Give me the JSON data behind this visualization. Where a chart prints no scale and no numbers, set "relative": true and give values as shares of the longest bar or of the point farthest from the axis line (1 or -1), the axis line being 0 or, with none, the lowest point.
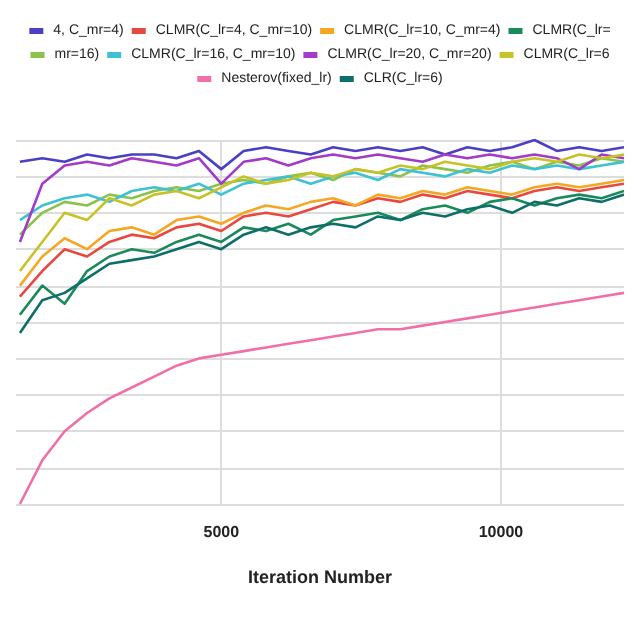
{
  "chart_data": {
    "type": "line",
    "relative": true,
    "xlabel": "Iteration Number",
    "xlim": [
      1330,
      12200
    ],
    "xticks": [
      5000,
      10000
    ],
    "grid": true,
    "legend": "top",
    "marker": "none",
    "x": [
      1400,
      1800,
      2200,
      2600,
      3000,
      3400,
      3800,
      4200,
      4600,
      5000,
      5400,
      5800,
      6200,
      6600,
      7000,
      7400,
      7800,
      8200,
      8600,
      9000,
      9400,
      9800,
      10200,
      10600,
      11000,
      11400,
      11800,
      12200
    ],
    "series": [
      {
        "name": "4, C_mr=4)",
        "color": "#4b3fc4",
        "values": [
          0.94,
          0.95,
          0.94,
          0.96,
          0.95,
          0.96,
          0.96,
          0.95,
          0.97,
          0.92,
          0.97,
          0.98,
          0.97,
          0.96,
          0.98,
          0.97,
          0.98,
          0.97,
          0.98,
          0.96,
          0.98,
          0.97,
          0.98,
          1.0,
          0.97,
          0.98,
          0.97,
          0.98
        ]
      },
      {
        "name": "CLMR(C_lr=4, C_mr=10)",
        "color": "#e8493f",
        "values": [
          0.57,
          0.64,
          0.7,
          0.68,
          0.72,
          0.74,
          0.73,
          0.76,
          0.77,
          0.75,
          0.79,
          0.8,
          0.79,
          0.81,
          0.83,
          0.82,
          0.84,
          0.83,
          0.85,
          0.84,
          0.86,
          0.85,
          0.84,
          0.86,
          0.87,
          0.86,
          0.87,
          0.88
        ]
      },
      {
        "name": "CLMR(C_lr=10, C_mr=4)",
        "color": "#f5a623",
        "values": [
          0.6,
          0.68,
          0.73,
          0.7,
          0.75,
          0.76,
          0.74,
          0.78,
          0.79,
          0.77,
          0.8,
          0.82,
          0.81,
          0.83,
          0.84,
          0.82,
          0.85,
          0.84,
          0.86,
          0.85,
          0.87,
          0.86,
          0.85,
          0.87,
          0.88,
          0.87,
          0.88,
          0.89
        ]
      },
      {
        "name": "CLMR(C_lr=",
        "color": "#1b8a5a",
        "values": [
          0.52,
          0.6,
          0.55,
          0.64,
          0.68,
          0.7,
          0.69,
          0.72,
          0.74,
          0.72,
          0.76,
          0.75,
          0.77,
          0.74,
          0.78,
          0.79,
          0.8,
          0.78,
          0.81,
          0.82,
          0.8,
          0.83,
          0.84,
          0.82,
          0.84,
          0.85,
          0.84,
          0.86
        ]
      },
      {
        "name": "mr=16)",
        "color": "#8bc34a",
        "values": [
          0.74,
          0.8,
          0.83,
          0.82,
          0.85,
          0.84,
          0.86,
          0.87,
          0.86,
          0.88,
          0.89,
          0.88,
          0.9,
          0.91,
          0.89,
          0.92,
          0.91,
          0.9,
          0.93,
          0.92,
          0.91,
          0.93,
          0.94,
          0.92,
          0.94,
          0.93,
          0.95,
          0.94
        ]
      },
      {
        "name": "CLMR(C_lr=16, C_mr=10)",
        "color": "#3fc1d4",
        "values": [
          0.78,
          0.82,
          0.84,
          0.85,
          0.83,
          0.86,
          0.87,
          0.86,
          0.88,
          0.85,
          0.88,
          0.89,
          0.9,
          0.88,
          0.9,
          0.91,
          0.89,
          0.92,
          0.91,
          0.9,
          0.92,
          0.91,
          0.93,
          0.92,
          0.93,
          0.92,
          0.93,
          0.94
        ]
      },
      {
        "name": "CLMR(C_lr=20, C_mr=20)",
        "color": "#a23bc8",
        "values": [
          0.72,
          0.88,
          0.93,
          0.94,
          0.93,
          0.95,
          0.94,
          0.93,
          0.95,
          0.88,
          0.94,
          0.95,
          0.93,
          0.95,
          0.96,
          0.95,
          0.96,
          0.95,
          0.94,
          0.96,
          0.95,
          0.96,
          0.95,
          0.96,
          0.95,
          0.92,
          0.96,
          0.95
        ]
      },
      {
        "name": "CLMR(C_lr=6",
        "color": "#c6c227",
        "values": [
          0.64,
          0.72,
          0.8,
          0.78,
          0.84,
          0.82,
          0.85,
          0.86,
          0.84,
          0.87,
          0.9,
          0.88,
          0.89,
          0.91,
          0.9,
          0.92,
          0.91,
          0.93,
          0.92,
          0.94,
          0.93,
          0.92,
          0.94,
          0.95,
          0.94,
          0.96,
          0.95,
          0.96
        ]
      },
      {
        "name": "Nesterov(fixed_lr)",
        "color": "#f06fa8",
        "values": [
          0,
          0.12,
          0.2,
          0.25,
          0.29,
          0.32,
          0.35,
          0.38,
          0.4,
          0.41,
          0.42,
          0.43,
          0.44,
          0.45,
          0.46,
          0.47,
          0.48,
          0.48,
          0.49,
          0.5,
          0.51,
          0.52,
          0.53,
          0.54,
          0.55,
          0.56,
          0.57,
          0.58
        ]
      },
      {
        "name": "CLR(C_lr=6)",
        "color": "#0d6e6a",
        "values": [
          0.47,
          0.56,
          0.58,
          0.62,
          0.66,
          0.67,
          0.68,
          0.7,
          0.72,
          0.7,
          0.74,
          0.76,
          0.74,
          0.76,
          0.77,
          0.76,
          0.79,
          0.78,
          0.8,
          0.79,
          0.81,
          0.82,
          0.8,
          0.83,
          0.82,
          0.84,
          0.83,
          0.85
        ]
      }
    ]
  }
}
